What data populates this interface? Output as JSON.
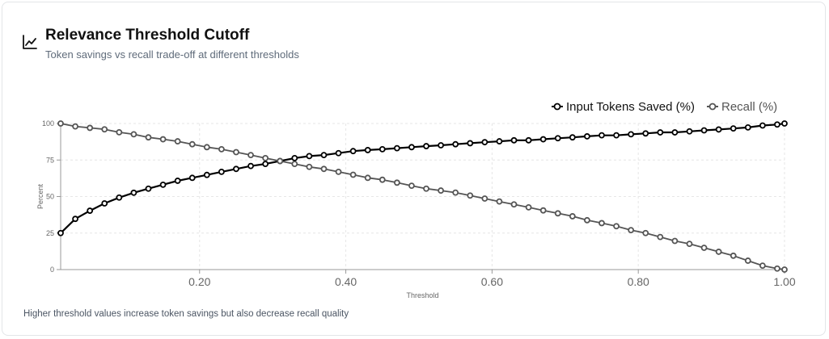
{
  "header": {
    "title": "Relevance Threshold Cutoff",
    "subtitle": "Token savings vs recall trade-off at different thresholds",
    "icon": "line-chart-icon"
  },
  "footer": {
    "note": "Higher threshold values increase token savings but also decrease recall quality"
  },
  "colors": {
    "series1": "#000000",
    "series2": "#555555",
    "grid": "#e6e6e6",
    "axis": "#999999"
  },
  "chart_data": {
    "type": "line",
    "xlabel": "Threshold",
    "ylabel": "Percent",
    "xlim": [
      0.01,
      1.0
    ],
    "ylim": [
      0,
      100
    ],
    "x_ticks": [
      "0.20",
      "0.40",
      "0.60",
      "0.80",
      "1.00"
    ],
    "y_ticks": [
      "0",
      "25",
      "50",
      "75",
      "100"
    ],
    "grid": true,
    "legend_position": "top-right",
    "x": [
      0.01,
      0.03,
      0.05,
      0.07,
      0.09,
      0.11,
      0.13,
      0.15,
      0.17,
      0.19,
      0.21,
      0.23,
      0.25,
      0.27,
      0.29,
      0.31,
      0.33,
      0.35,
      0.37,
      0.39,
      0.41,
      0.43,
      0.45,
      0.47,
      0.49,
      0.51,
      0.53,
      0.55,
      0.57,
      0.59,
      0.61,
      0.63,
      0.65,
      0.67,
      0.69,
      0.71,
      0.73,
      0.75,
      0.77,
      0.79,
      0.81,
      0.83,
      0.85,
      0.87,
      0.89,
      0.91,
      0.93,
      0.95,
      0.97,
      0.99,
      1.0
    ],
    "series": [
      {
        "name": "Input Tokens Saved (%)",
        "values": [
          25,
          34.7,
          40.3,
          45.3,
          49.3,
          52.6,
          55.4,
          58.1,
          60.8,
          62.8,
          64.8,
          66.9,
          68.9,
          70.9,
          72.3,
          74.3,
          76.3,
          77.7,
          78.4,
          79.7,
          81.1,
          81.8,
          82.4,
          83.1,
          83.8,
          84.5,
          85.1,
          85.8,
          86.5,
          87.2,
          87.8,
          88.5,
          88.5,
          89.2,
          89.9,
          90.5,
          91.2,
          91.9,
          91.9,
          92.6,
          93.2,
          93.9,
          93.9,
          94.6,
          95.3,
          95.9,
          96.6,
          97.3,
          98.6,
          99.3,
          100
        ]
      },
      {
        "name": "Recall (%)",
        "values": [
          100,
          98,
          97,
          96,
          94,
          92.6,
          90.5,
          89.2,
          87.8,
          85.8,
          83.8,
          82.4,
          80.4,
          78.4,
          76.3,
          74.3,
          72.3,
          70.3,
          68.9,
          66.9,
          64.9,
          62.8,
          61.5,
          59.5,
          57.4,
          55.4,
          54.1,
          52.7,
          50.7,
          48.6,
          46.6,
          44.6,
          42.6,
          40.5,
          38.5,
          36.5,
          33.8,
          31.8,
          29.7,
          27,
          25,
          22.3,
          19.6,
          17.6,
          14.9,
          12.2,
          9.5,
          6.1,
          2.7,
          0.7,
          0
        ]
      }
    ]
  }
}
